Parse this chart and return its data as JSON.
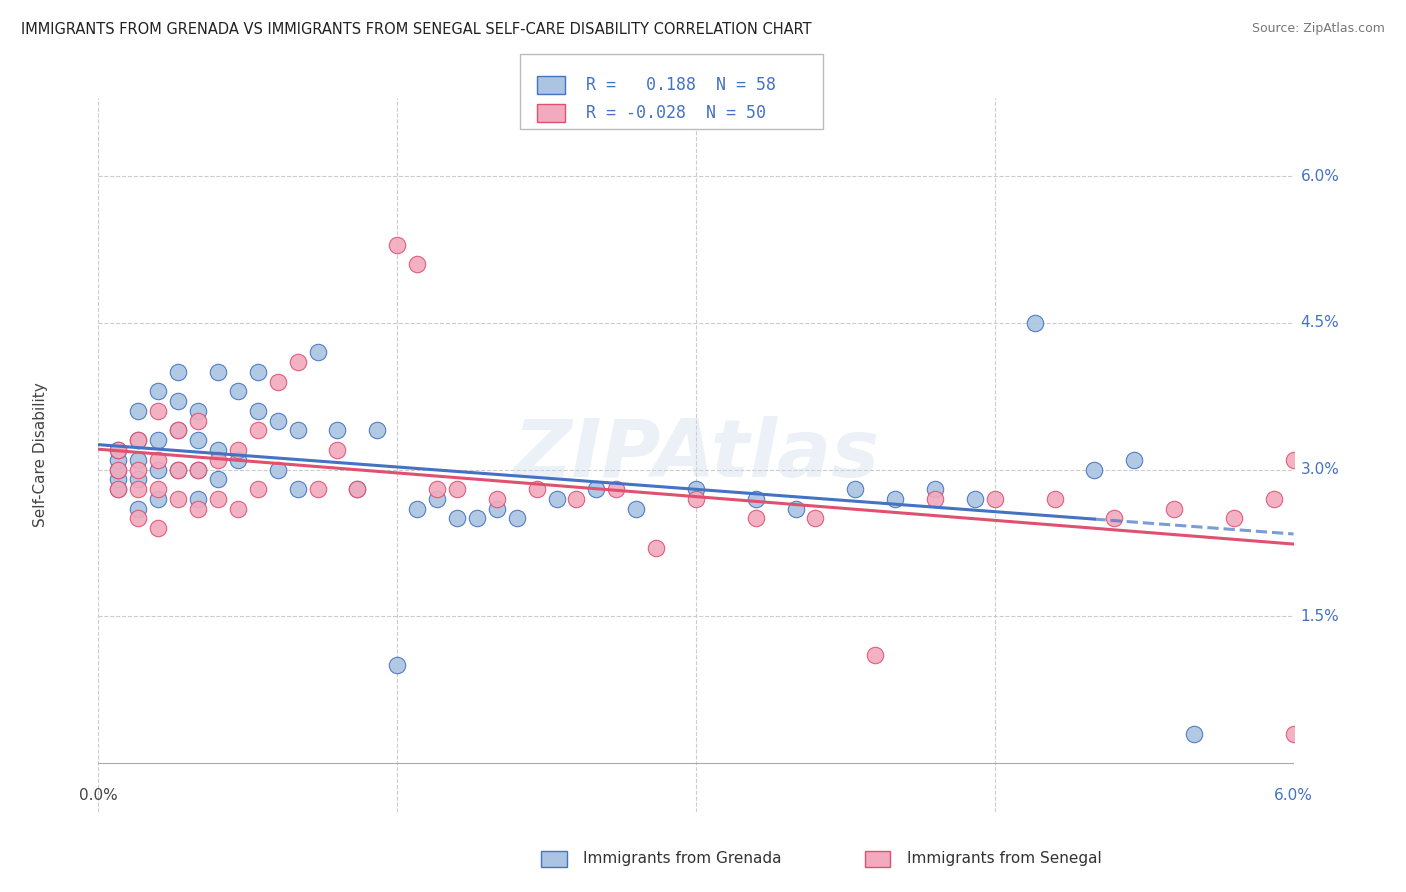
{
  "title": "IMMIGRANTS FROM GRENADA VS IMMIGRANTS FROM SENEGAL SELF-CARE DISABILITY CORRELATION CHART",
  "source": "Source: ZipAtlas.com",
  "ylabel": "Self-Care Disability",
  "right_yticks": [
    "1.5%",
    "3.0%",
    "4.5%",
    "6.0%"
  ],
  "right_ytick_vals": [
    0.015,
    0.03,
    0.045,
    0.06
  ],
  "xmin": 0.0,
  "xmax": 0.06,
  "ymin": -0.005,
  "ymax": 0.068,
  "grenada_R": 0.188,
  "grenada_N": 58,
  "senegal_R": -0.028,
  "senegal_N": 50,
  "grenada_color": "#aac4e2",
  "senegal_color": "#f2aabe",
  "grenada_line_color": "#4472c4",
  "senegal_line_color": "#e05070",
  "grenada_x": [
    0.001,
    0.001,
    0.001,
    0.001,
    0.001,
    0.002,
    0.002,
    0.002,
    0.002,
    0.002,
    0.003,
    0.003,
    0.003,
    0.003,
    0.004,
    0.004,
    0.004,
    0.004,
    0.005,
    0.005,
    0.005,
    0.005,
    0.006,
    0.006,
    0.006,
    0.007,
    0.007,
    0.008,
    0.008,
    0.009,
    0.009,
    0.01,
    0.01,
    0.011,
    0.012,
    0.013,
    0.014,
    0.015,
    0.016,
    0.017,
    0.018,
    0.019,
    0.02,
    0.021,
    0.023,
    0.025,
    0.027,
    0.03,
    0.033,
    0.035,
    0.038,
    0.04,
    0.042,
    0.044,
    0.047,
    0.05,
    0.052,
    0.055
  ],
  "grenada_y": [
    0.028,
    0.029,
    0.03,
    0.031,
    0.032,
    0.026,
    0.029,
    0.031,
    0.033,
    0.036,
    0.027,
    0.03,
    0.033,
    0.038,
    0.03,
    0.034,
    0.037,
    0.04,
    0.027,
    0.03,
    0.033,
    0.036,
    0.029,
    0.032,
    0.04,
    0.031,
    0.038,
    0.036,
    0.04,
    0.03,
    0.035,
    0.028,
    0.034,
    0.042,
    0.034,
    0.028,
    0.034,
    0.01,
    0.026,
    0.027,
    0.025,
    0.025,
    0.026,
    0.025,
    0.027,
    0.028,
    0.026,
    0.028,
    0.027,
    0.026,
    0.028,
    0.027,
    0.028,
    0.027,
    0.045,
    0.03,
    0.031,
    0.003
  ],
  "senegal_x": [
    0.001,
    0.001,
    0.001,
    0.002,
    0.002,
    0.002,
    0.002,
    0.003,
    0.003,
    0.003,
    0.003,
    0.004,
    0.004,
    0.004,
    0.005,
    0.005,
    0.005,
    0.006,
    0.006,
    0.007,
    0.007,
    0.008,
    0.008,
    0.009,
    0.01,
    0.011,
    0.012,
    0.013,
    0.015,
    0.016,
    0.017,
    0.018,
    0.02,
    0.022,
    0.024,
    0.026,
    0.028,
    0.03,
    0.033,
    0.036,
    0.039,
    0.042,
    0.045,
    0.048,
    0.051,
    0.054,
    0.057,
    0.059,
    0.06,
    0.06
  ],
  "senegal_y": [
    0.028,
    0.03,
    0.032,
    0.025,
    0.028,
    0.03,
    0.033,
    0.024,
    0.028,
    0.031,
    0.036,
    0.027,
    0.03,
    0.034,
    0.026,
    0.03,
    0.035,
    0.027,
    0.031,
    0.026,
    0.032,
    0.028,
    0.034,
    0.039,
    0.041,
    0.028,
    0.032,
    0.028,
    0.053,
    0.051,
    0.028,
    0.028,
    0.027,
    0.028,
    0.027,
    0.028,
    0.022,
    0.027,
    0.025,
    0.025,
    0.011,
    0.027,
    0.027,
    0.027,
    0.025,
    0.026,
    0.025,
    0.027,
    0.031,
    0.003
  ]
}
